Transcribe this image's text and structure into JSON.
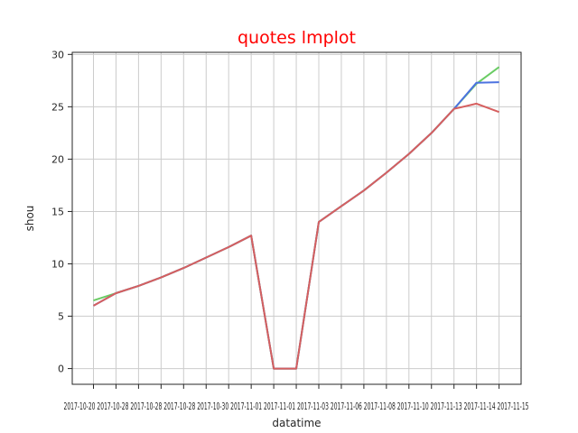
{
  "chart_data": {
    "type": "line",
    "title": "quotes lmplot",
    "xlabel": "datatime",
    "ylabel": "shou",
    "ylim": [
      -1.5,
      30.2
    ],
    "yticks": [
      0,
      5,
      10,
      15,
      20,
      25,
      30
    ],
    "grid": true,
    "title_color": "#ff0000",
    "x_tick_label_text": "2017-10-20 2017-10-25 2017-10-28 2017-10-28 2017-10-28 2017-10-28 2017-10-28 2017-10-30 2017-11-01 2017-11-01 2017-11-01 2017-11-03 2017-11-06 2017-11-06 2017-11-08 2017-11-09 2017-11-10 2017-11-13 2017-11-14 2017-11-15",
    "x_tick_label_display": "2017-10-20 2017-10-28 2017-10-28 2017-10-28 2017-10-30 2017-11-01 2017-11-01 2017-11-03 2017-11-06 2017-11-08 2017-11-10 2017-11-13 2017-11-14 2017-11-15",
    "x": [
      0,
      1,
      2,
      3,
      4,
      5,
      6,
      7,
      8,
      9,
      10,
      11,
      12,
      13,
      14,
      15,
      16,
      17,
      18
    ],
    "series": [
      {
        "color": "#6acc64",
        "values": [
          6.5,
          7.2,
          7.9,
          8.7,
          9.6,
          10.6,
          11.6,
          12.7,
          0.0,
          0.0,
          14.0,
          15.5,
          17.0,
          18.7,
          20.5,
          22.5,
          24.8,
          27.2,
          28.8
        ]
      },
      {
        "color": "#4c72e0",
        "values": [
          6.0,
          7.2,
          7.9,
          8.7,
          9.6,
          10.6,
          11.6,
          12.7,
          0.0,
          0.0,
          14.0,
          15.5,
          17.0,
          18.7,
          20.5,
          22.5,
          24.8,
          27.3,
          27.35
        ]
      },
      {
        "color": "#d65f5f",
        "values": [
          6.0,
          7.2,
          7.9,
          8.7,
          9.6,
          10.6,
          11.6,
          12.7,
          0.0,
          0.0,
          14.0,
          15.5,
          17.0,
          18.7,
          20.5,
          22.5,
          24.8,
          25.3,
          24.5
        ]
      }
    ]
  }
}
